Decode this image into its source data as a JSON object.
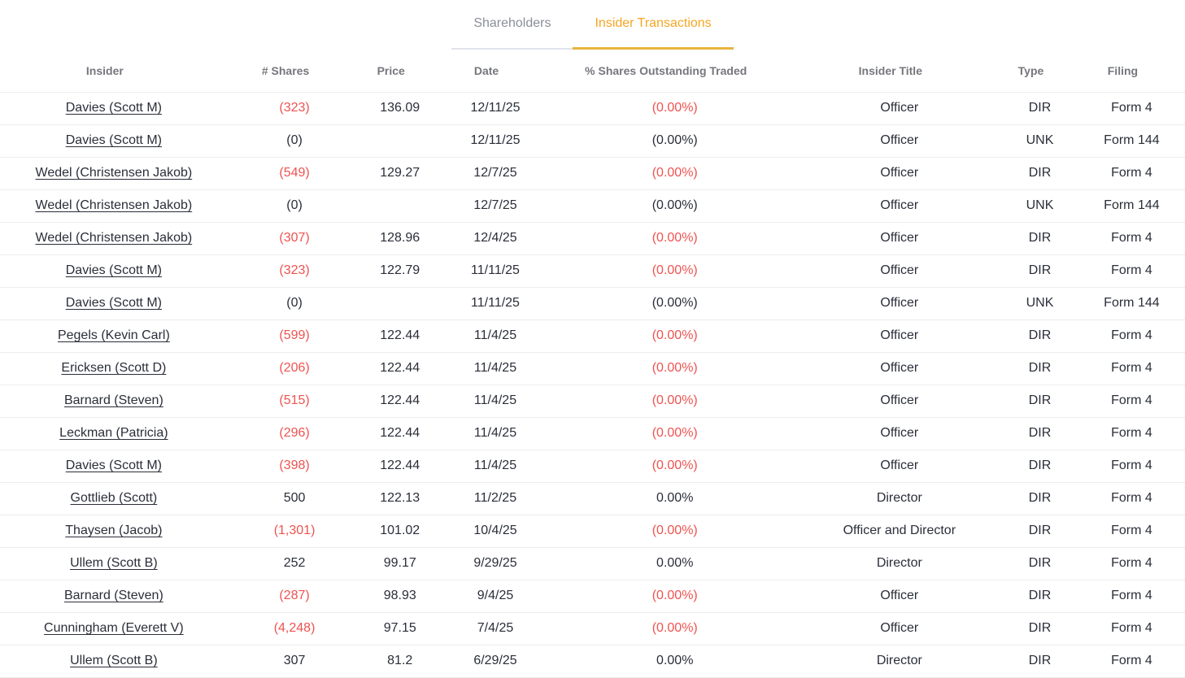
{
  "colors": {
    "accent": "#f5a623",
    "accent_underline": "#e8b43c",
    "negative": "#ef5350",
    "text": "#2a2e39",
    "header_text": "#75777d",
    "muted": "#8a8f98"
  },
  "tabs": [
    {
      "label": "Shareholders",
      "active": false
    },
    {
      "label": "Insider Transactions",
      "active": true
    }
  ],
  "table": {
    "columns": [
      "Insider",
      "# Shares",
      "Price",
      "Date",
      "% Shares Outstanding Traded",
      "Insider Title",
      "Type",
      "Filing"
    ],
    "rows": [
      {
        "insider": "Davies (Scott M)",
        "shares": "(323)",
        "shares_negative": true,
        "price": "136.09",
        "date": "12/11/25",
        "pct": "(0.00%)",
        "pct_negative": true,
        "title": "Officer",
        "type": "DIR",
        "filing": "Form 4"
      },
      {
        "insider": "Davies (Scott M)",
        "shares": "(0)",
        "shares_negative": false,
        "price": "",
        "date": "12/11/25",
        "pct": "(0.00%)",
        "pct_negative": false,
        "title": "Officer",
        "type": "UNK",
        "filing": "Form 144"
      },
      {
        "insider": "Wedel (Christensen Jakob)",
        "shares": "(549)",
        "shares_negative": true,
        "price": "129.27",
        "date": "12/7/25",
        "pct": "(0.00%)",
        "pct_negative": true,
        "title": "Officer",
        "type": "DIR",
        "filing": "Form 4"
      },
      {
        "insider": "Wedel (Christensen Jakob)",
        "shares": "(0)",
        "shares_negative": false,
        "price": "",
        "date": "12/7/25",
        "pct": "(0.00%)",
        "pct_negative": false,
        "title": "Officer",
        "type": "UNK",
        "filing": "Form 144"
      },
      {
        "insider": "Wedel (Christensen Jakob)",
        "shares": "(307)",
        "shares_negative": true,
        "price": "128.96",
        "date": "12/4/25",
        "pct": "(0.00%)",
        "pct_negative": true,
        "title": "Officer",
        "type": "DIR",
        "filing": "Form 4"
      },
      {
        "insider": "Davies (Scott M)",
        "shares": "(323)",
        "shares_negative": true,
        "price": "122.79",
        "date": "11/11/25",
        "pct": "(0.00%)",
        "pct_negative": true,
        "title": "Officer",
        "type": "DIR",
        "filing": "Form 4"
      },
      {
        "insider": "Davies (Scott M)",
        "shares": "(0)",
        "shares_negative": false,
        "price": "",
        "date": "11/11/25",
        "pct": "(0.00%)",
        "pct_negative": false,
        "title": "Officer",
        "type": "UNK",
        "filing": "Form 144"
      },
      {
        "insider": "Pegels (Kevin Carl)",
        "shares": "(599)",
        "shares_negative": true,
        "price": "122.44",
        "date": "11/4/25",
        "pct": "(0.00%)",
        "pct_negative": true,
        "title": "Officer",
        "type": "DIR",
        "filing": "Form 4"
      },
      {
        "insider": "Ericksen (Scott D)",
        "shares": "(206)",
        "shares_negative": true,
        "price": "122.44",
        "date": "11/4/25",
        "pct": "(0.00%)",
        "pct_negative": true,
        "title": "Officer",
        "type": "DIR",
        "filing": "Form 4"
      },
      {
        "insider": "Barnard (Steven)",
        "shares": "(515)",
        "shares_negative": true,
        "price": "122.44",
        "date": "11/4/25",
        "pct": "(0.00%)",
        "pct_negative": true,
        "title": "Officer",
        "type": "DIR",
        "filing": "Form 4"
      },
      {
        "insider": "Leckman (Patricia)",
        "shares": "(296)",
        "shares_negative": true,
        "price": "122.44",
        "date": "11/4/25",
        "pct": "(0.00%)",
        "pct_negative": true,
        "title": "Officer",
        "type": "DIR",
        "filing": "Form 4"
      },
      {
        "insider": "Davies (Scott M)",
        "shares": "(398)",
        "shares_negative": true,
        "price": "122.44",
        "date": "11/4/25",
        "pct": "(0.00%)",
        "pct_negative": true,
        "title": "Officer",
        "type": "DIR",
        "filing": "Form 4"
      },
      {
        "insider": "Gottlieb (Scott)",
        "shares": "500",
        "shares_negative": false,
        "price": "122.13",
        "date": "11/2/25",
        "pct": "0.00%",
        "pct_negative": false,
        "title": "Director",
        "type": "DIR",
        "filing": "Form 4"
      },
      {
        "insider": "Thaysen (Jacob)",
        "shares": "(1,301)",
        "shares_negative": true,
        "price": "101.02",
        "date": "10/4/25",
        "pct": "(0.00%)",
        "pct_negative": true,
        "title": "Officer and Director",
        "type": "DIR",
        "filing": "Form 4"
      },
      {
        "insider": "Ullem (Scott B)",
        "shares": "252",
        "shares_negative": false,
        "price": "99.17",
        "date": "9/29/25",
        "pct": "0.00%",
        "pct_negative": false,
        "title": "Director",
        "type": "DIR",
        "filing": "Form 4"
      },
      {
        "insider": "Barnard (Steven)",
        "shares": "(287)",
        "shares_negative": true,
        "price": "98.93",
        "date": "9/4/25",
        "pct": "(0.00%)",
        "pct_negative": true,
        "title": "Officer",
        "type": "DIR",
        "filing": "Form 4"
      },
      {
        "insider": "Cunningham (Everett V)",
        "shares": "(4,248)",
        "shares_negative": true,
        "price": "97.15",
        "date": "7/4/25",
        "pct": "(0.00%)",
        "pct_negative": true,
        "title": "Officer",
        "type": "DIR",
        "filing": "Form 4"
      },
      {
        "insider": "Ullem (Scott B)",
        "shares": "307",
        "shares_negative": false,
        "price": "81.2",
        "date": "6/29/25",
        "pct": "0.00%",
        "pct_negative": false,
        "title": "Director",
        "type": "DIR",
        "filing": "Form 4"
      }
    ]
  }
}
